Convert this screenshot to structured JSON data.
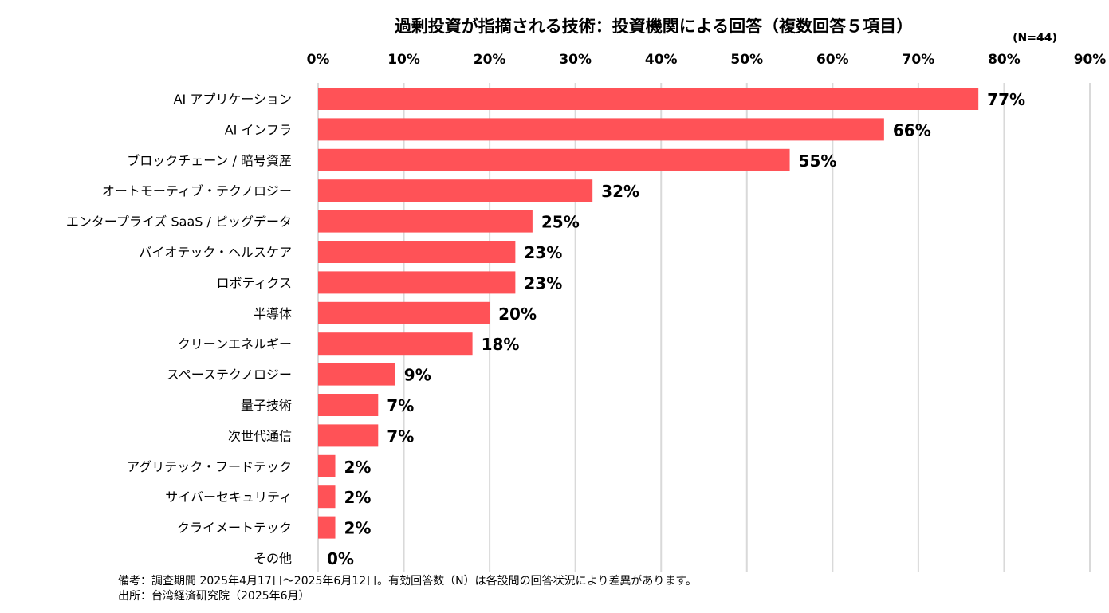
{
  "chart_data": {
    "type": "bar",
    "orientation": "horizontal",
    "title": "過剰投資が指摘される技術：投資機関による回答（複数回答５項目）",
    "sample_size": "(N=44)",
    "xlim": [
      0,
      90
    ],
    "xticks": [
      0,
      10,
      20,
      30,
      40,
      50,
      60,
      70,
      80,
      90
    ],
    "tick_suffix": "%",
    "grid": "vertical",
    "bar_color": "#ff5257",
    "categories": [
      "AI アプリケーション",
      "AI インフラ",
      "ブロックチェーン / 暗号資産",
      "オートモーティブ・テクノロジー",
      "エンタープライズ SaaS / ビッグデータ",
      "バイオテック・ヘルスケア",
      "ロボティクス",
      "半導体",
      "クリーンエネルギー",
      "スペーステクノロジー",
      "量子技術",
      "次世代通信",
      "アグリテック・フードテック",
      "サイバーセキュリティ",
      "クライメートテック",
      "その他"
    ],
    "values": [
      77,
      66,
      55,
      32,
      25,
      23,
      23,
      20,
      18,
      9,
      7,
      7,
      2,
      2,
      2,
      0
    ],
    "value_labels": [
      "77%",
      "66%",
      "55%",
      "32%",
      "25%",
      "23%",
      "23%",
      "20%",
      "18%",
      "9%",
      "7%",
      "7%",
      "2%",
      "2%",
      "2%",
      "0%"
    ]
  },
  "footnotes": {
    "remarks": "備考：調査期間 2025年4月17日～2025年6月12日。有効回答数（N）は各設問の回答状況により差異があります。",
    "source": "出所：台湾経済研究院（2025年6月）"
  }
}
